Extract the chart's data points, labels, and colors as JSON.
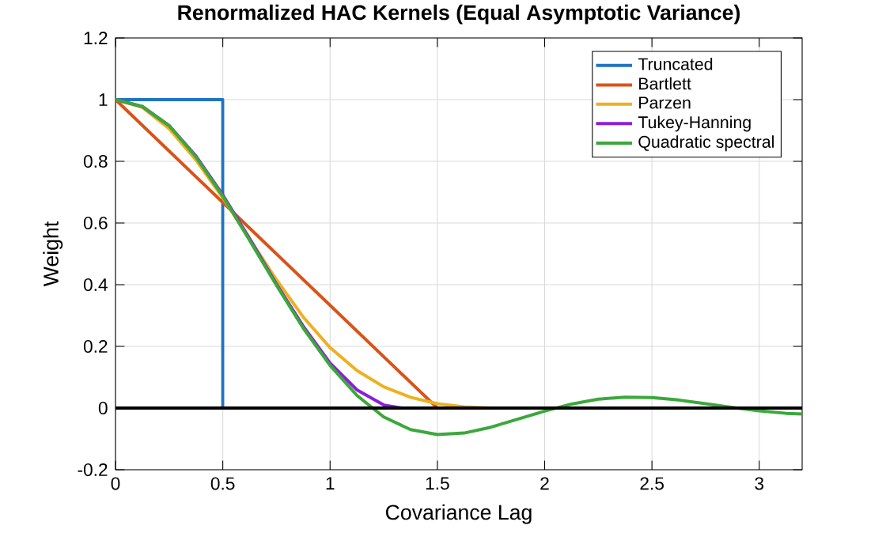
{
  "chart_data": {
    "type": "line",
    "title": "Renormalized HAC Kernels (Equal Asymptotic Variance)",
    "xlabel": "Covariance Lag",
    "ylabel": "Weight",
    "xlim": [
      0,
      3.2
    ],
    "xticks": [
      0,
      0.5,
      1,
      1.5,
      2,
      2.5,
      3
    ],
    "ylim": [
      -0.2,
      1.2
    ],
    "yticks": [
      -0.2,
      0,
      0.2,
      0.4,
      0.6,
      0.8,
      1,
      1.2
    ],
    "grid": true,
    "legend": "top right",
    "line_style": "solid",
    "marker": "none",
    "ref_lines": [
      {
        "axis": "y",
        "value": 0,
        "label": null,
        "color": "#000000"
      }
    ],
    "series": [
      {
        "name": "Truncated",
        "color": "#1f74c4",
        "x": [
          0,
          0.5,
          0.5
        ],
        "values": [
          1,
          1,
          0
        ]
      },
      {
        "name": "Bartlett",
        "color": "#d95319",
        "x": [
          0,
          1.5
        ],
        "values": [
          1,
          0
        ]
      },
      {
        "name": "Parzen",
        "color": "#edb120",
        "x": [
          0,
          0.125,
          0.25,
          0.375,
          0.5,
          0.625,
          0.75,
          0.875,
          1,
          1.125,
          1.25,
          1.375,
          1.5,
          1.625,
          1.75,
          1.855
        ],
        "values": [
          1,
          0.975,
          0.906,
          0.804,
          0.682,
          0.549,
          0.416,
          0.295,
          0.196,
          0.122,
          0.069,
          0.035,
          0.014,
          0.004,
          0.0,
          0
        ]
      },
      {
        "name": "Tukey-Hanning",
        "color": "#8a1fd8",
        "x": [
          0,
          0.125,
          0.25,
          0.375,
          0.5,
          0.625,
          0.75,
          0.875,
          1,
          1.125,
          1.25,
          1.333
        ],
        "values": [
          1,
          0.978,
          0.916,
          0.817,
          0.691,
          0.549,
          0.402,
          0.265,
          0.146,
          0.059,
          0.01,
          0
        ]
      },
      {
        "name": "Quadratic spectral",
        "color": "#3ba83b",
        "x": [
          0,
          0.125,
          0.25,
          0.375,
          0.5,
          0.625,
          0.75,
          0.875,
          1,
          1.125,
          1.25,
          1.375,
          1.5,
          1.625,
          1.75,
          1.875,
          2,
          2.125,
          2.25,
          2.375,
          2.5,
          2.625,
          2.75,
          2.875,
          3,
          3.125,
          3.2
        ],
        "values": [
          1,
          0.978,
          0.916,
          0.814,
          0.687,
          0.544,
          0.398,
          0.259,
          0.138,
          0.041,
          -0.029,
          -0.07,
          -0.086,
          -0.081,
          -0.062,
          -0.036,
          -0.01,
          0.013,
          0.029,
          0.035,
          0.034,
          0.026,
          0.014,
          0.002,
          -0.009,
          -0.017,
          -0.019
        ]
      }
    ]
  }
}
